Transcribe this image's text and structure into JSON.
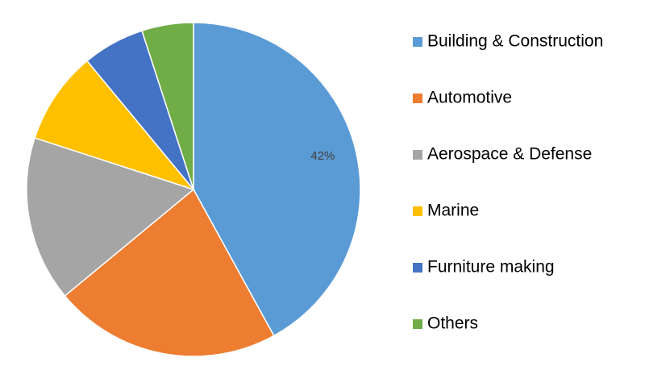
{
  "chart_data": {
    "type": "pie",
    "categories": [
      "Building & Construction",
      "Automotive",
      "Aerospace & Defense",
      "Marine",
      "Furniture making",
      "Others"
    ],
    "values": [
      42,
      22,
      16,
      9,
      6,
      5
    ],
    "value_labels": [
      "42%",
      null,
      null,
      null,
      null,
      null
    ],
    "colors": [
      "#5b9bd5",
      "#ed7d31",
      "#a5a5a5",
      "#ffc000",
      "#4472c4",
      "#70ad47"
    ],
    "legend": "right"
  }
}
